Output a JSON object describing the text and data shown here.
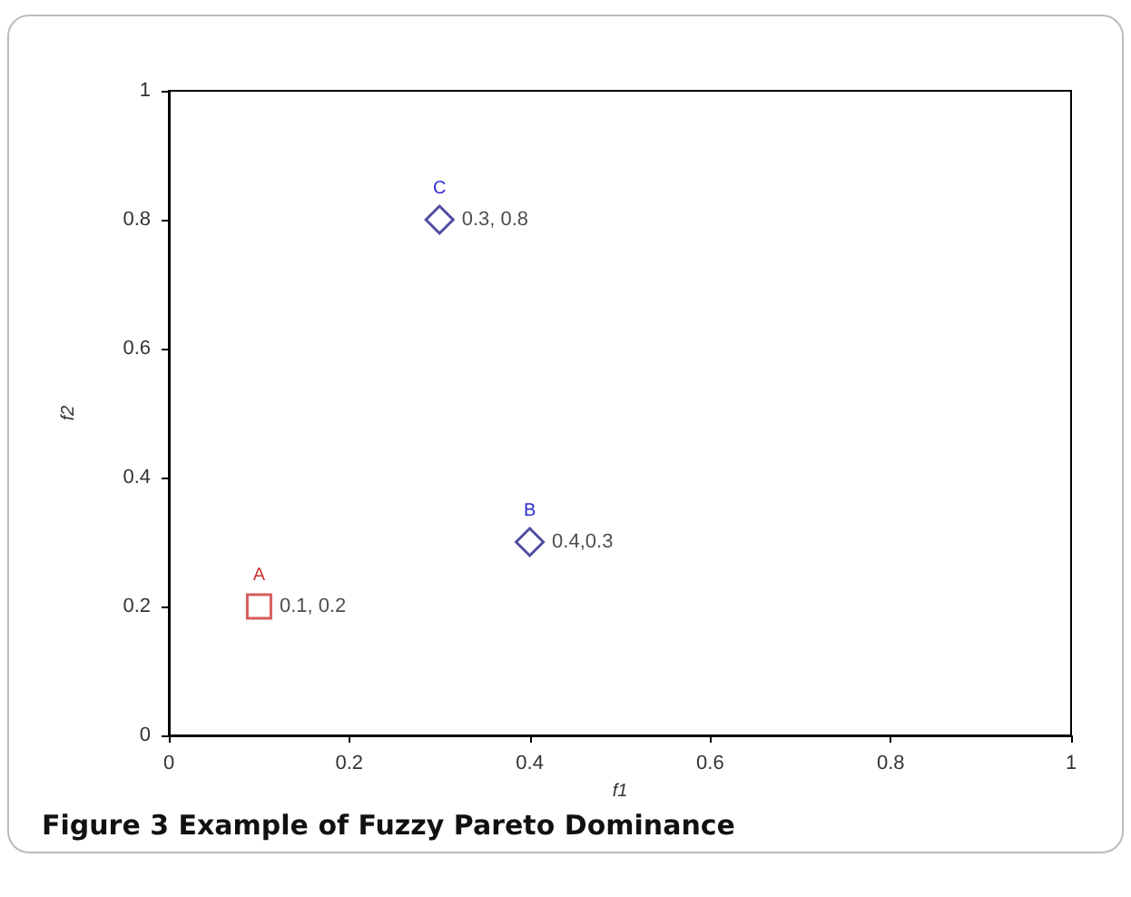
{
  "chart_data": {
    "type": "scatter",
    "title": "Figure 3 Example of Fuzzy Pareto Dominance",
    "xlabel": "f1",
    "ylabel": "f2",
    "xlim": [
      0,
      1
    ],
    "ylim": [
      0,
      1
    ],
    "xticks": [
      0,
      0.2,
      0.4,
      0.6,
      0.8,
      1
    ],
    "yticks": [
      0,
      0.2,
      0.4,
      0.6,
      0.8,
      1
    ],
    "grid": false,
    "legend": false,
    "series": [
      {
        "name": "A",
        "color": "#cc3333",
        "marker": "square",
        "x": [
          0.1
        ],
        "values": [
          0.2
        ],
        "value_labels": [
          "0.1, 0.2"
        ]
      },
      {
        "name": "B",
        "color": "#22228a",
        "marker": "diamond",
        "x": [
          0.4
        ],
        "values": [
          0.3
        ],
        "value_labels": [
          "0.4,0.3"
        ]
      },
      {
        "name": "C",
        "color": "#22228a",
        "marker": "diamond",
        "x": [
          0.3
        ],
        "values": [
          0.8
        ],
        "value_labels": [
          "0.3, 0.8"
        ]
      }
    ]
  }
}
